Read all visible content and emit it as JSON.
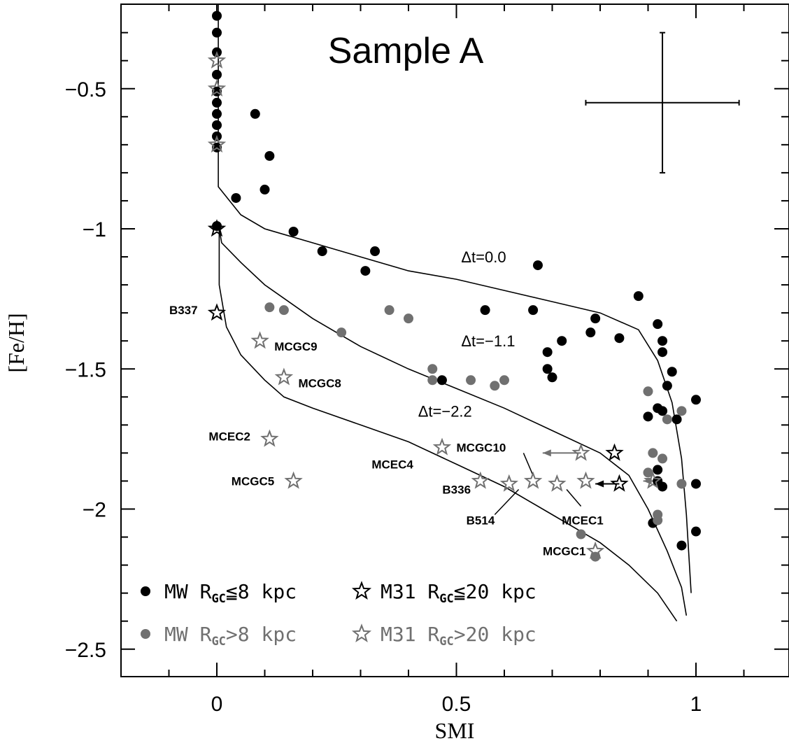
{
  "chart_data": {
    "type": "scatter",
    "title": "Sample A",
    "xlabel": "SMI",
    "ylabel": "[Fe/H]",
    "xlim": [
      -0.2,
      1.2
    ],
    "ylim": [
      -2.6,
      -0.2
    ],
    "grid": false,
    "x_ticks": [
      {
        "v": 0,
        "label": "0"
      },
      {
        "v": 0.5,
        "label": "0.5"
      },
      {
        "v": 1,
        "label": "1"
      }
    ],
    "y_ticks": [
      {
        "v": -0.5,
        "label": "−0.5"
      },
      {
        "v": -1,
        "label": "−1"
      },
      {
        "v": -1.5,
        "label": "−1.5"
      },
      {
        "v": -2,
        "label": "−2"
      },
      {
        "v": -2.5,
        "label": "−2.5"
      }
    ],
    "legend": {
      "placement": "bottom-left",
      "items": [
        {
          "marker": "dot",
          "color": "#000000",
          "text": "MW R",
          "sub": "GC",
          "rest": "≦8 kpc"
        },
        {
          "marker": "star",
          "color": "#000000",
          "text": "M31 R",
          "sub": "GC",
          "rest": "≦20 kpc"
        },
        {
          "marker": "dot",
          "color": "#707070",
          "text": "MW R",
          "sub": "GC",
          "rest": ">8 kpc"
        },
        {
          "marker": "star",
          "color": "#707070",
          "text": "M31 R",
          "sub": "GC",
          "rest": ">20 kpc"
        }
      ]
    },
    "error_bar": {
      "x": 0.93,
      "y": -0.55,
      "xerr": 0.16,
      "yerr": 0.25
    },
    "curves": [
      {
        "label": "Δt=0.0",
        "label_x": 0.51,
        "label_y": -1.12,
        "points": [
          [
            0.003,
            -0.2
          ],
          [
            0.003,
            -0.85
          ],
          [
            0.05,
            -0.95
          ],
          [
            0.1,
            -1.0
          ],
          [
            0.2,
            -1.05
          ],
          [
            0.3,
            -1.1
          ],
          [
            0.4,
            -1.15
          ],
          [
            0.5,
            -1.18
          ],
          [
            0.6,
            -1.22
          ],
          [
            0.7,
            -1.26
          ],
          [
            0.8,
            -1.3
          ],
          [
            0.88,
            -1.36
          ],
          [
            0.92,
            -1.47
          ],
          [
            0.95,
            -1.62
          ],
          [
            0.97,
            -1.82
          ],
          [
            0.98,
            -2.02
          ],
          [
            0.99,
            -2.3
          ]
        ]
      },
      {
        "label": "Δt=−1.1",
        "label_x": 0.51,
        "label_y": -1.42,
        "points": [
          [
            0.005,
            -1.0
          ],
          [
            0.01,
            -1.05
          ],
          [
            0.05,
            -1.12
          ],
          [
            0.1,
            -1.2
          ],
          [
            0.2,
            -1.32
          ],
          [
            0.3,
            -1.42
          ],
          [
            0.4,
            -1.5
          ],
          [
            0.5,
            -1.57
          ],
          [
            0.6,
            -1.64
          ],
          [
            0.7,
            -1.72
          ],
          [
            0.8,
            -1.8
          ],
          [
            0.86,
            -1.88
          ],
          [
            0.9,
            -2.0
          ],
          [
            0.94,
            -2.15
          ],
          [
            0.97,
            -2.28
          ],
          [
            0.98,
            -2.38
          ]
        ]
      },
      {
        "label": "Δt=−2.2",
        "label_x": 0.42,
        "label_y": -1.67,
        "points": [
          [
            0.005,
            -0.98
          ],
          [
            0.005,
            -1.2
          ],
          [
            0.02,
            -1.35
          ],
          [
            0.05,
            -1.45
          ],
          [
            0.1,
            -1.54
          ],
          [
            0.14,
            -1.6
          ],
          [
            0.2,
            -1.64
          ],
          [
            0.3,
            -1.7
          ],
          [
            0.4,
            -1.76
          ],
          [
            0.5,
            -1.84
          ],
          [
            0.6,
            -1.92
          ],
          [
            0.7,
            -2.02
          ],
          [
            0.8,
            -2.12
          ],
          [
            0.86,
            -2.2
          ],
          [
            0.92,
            -2.3
          ],
          [
            0.96,
            -2.4
          ]
        ]
      }
    ],
    "series": [
      {
        "name": "MW R",
        "sub": "GC",
        "rest": "≦8 kpc",
        "marker": "dot",
        "color": "#000000",
        "points": [
          [
            0,
            -0.24
          ],
          [
            0,
            -0.3
          ],
          [
            0,
            -0.37
          ],
          [
            0,
            -0.45
          ],
          [
            0,
            -0.51
          ],
          [
            0,
            -0.55
          ],
          [
            0,
            -0.59
          ],
          [
            0,
            -0.63
          ],
          [
            0,
            -0.67
          ],
          [
            0,
            -0.71
          ],
          [
            0,
            -0.99
          ],
          [
            0.08,
            -0.59
          ],
          [
            0.11,
            -0.74
          ],
          [
            0.1,
            -0.86
          ],
          [
            0.04,
            -0.89
          ],
          [
            0.16,
            -1.01
          ],
          [
            0.22,
            -1.08
          ],
          [
            0.31,
            -1.15
          ],
          [
            0.33,
            -1.08
          ],
          [
            0.47,
            -1.54
          ],
          [
            0.56,
            -1.29
          ],
          [
            0.66,
            -1.29
          ],
          [
            0.67,
            -1.13
          ],
          [
            0.69,
            -1.44
          ],
          [
            0.69,
            -1.5
          ],
          [
            0.7,
            -1.53
          ],
          [
            0.72,
            -1.4
          ],
          [
            0.78,
            -1.37
          ],
          [
            0.79,
            -1.32
          ],
          [
            0.84,
            -1.39
          ],
          [
            0.88,
            -1.24
          ],
          [
            0.9,
            -1.67
          ],
          [
            0.91,
            -2.05
          ],
          [
            0.92,
            -1.34
          ],
          [
            0.92,
            -1.64
          ],
          [
            0.92,
            -1.86
          ],
          [
            0.92,
            -1.9
          ],
          [
            0.93,
            -1.4
          ],
          [
            0.93,
            -1.44
          ],
          [
            0.93,
            -1.65
          ],
          [
            0.93,
            -1.92
          ],
          [
            0.94,
            -1.56
          ],
          [
            0.95,
            -1.51
          ],
          [
            0.96,
            -1.68
          ],
          [
            0.97,
            -2.13
          ],
          [
            1.0,
            -1.61
          ],
          [
            1.0,
            -1.91
          ],
          [
            1.0,
            -2.08
          ]
        ]
      },
      {
        "name": "MW R",
        "sub": "GC",
        "rest": ">8 kpc",
        "marker": "dot",
        "color": "#707070",
        "points": [
          [
            0.11,
            -1.28
          ],
          [
            0.14,
            -1.29
          ],
          [
            0.26,
            -1.37
          ],
          [
            0.36,
            -1.29
          ],
          [
            0.4,
            -1.32
          ],
          [
            0.45,
            -1.5
          ],
          [
            0.45,
            -1.54
          ],
          [
            0.53,
            -1.54
          ],
          [
            0.58,
            -1.56
          ],
          [
            0.6,
            -1.54
          ],
          [
            0.76,
            -2.09
          ],
          [
            0.79,
            -2.17
          ],
          [
            0.9,
            -1.58
          ],
          [
            0.9,
            -1.87
          ],
          [
            0.91,
            -1.8
          ],
          [
            0.92,
            -2.02
          ],
          [
            0.92,
            -2.04
          ],
          [
            0.93,
            -1.82
          ],
          [
            0.94,
            -1.68
          ],
          [
            0.97,
            -1.65
          ],
          [
            0.97,
            -1.91
          ]
        ]
      },
      {
        "name": "M31 R",
        "sub": "GC",
        "rest": "≦20 kpc",
        "marker": "star",
        "color": "#000000",
        "points": [
          [
            0,
            -1.0
          ],
          [
            0,
            -1.3
          ],
          [
            0.83,
            -1.8
          ],
          [
            0.84,
            -1.91
          ]
        ]
      },
      {
        "name": "M31 R",
        "sub": "GC",
        "rest": ">20 kpc",
        "marker": "star",
        "color": "#707070",
        "points": [
          [
            0,
            -0.4
          ],
          [
            0,
            -0.5
          ],
          [
            0,
            -0.7
          ],
          [
            0.09,
            -1.4
          ],
          [
            0.14,
            -1.53
          ],
          [
            0.11,
            -1.75
          ],
          [
            0.16,
            -1.9
          ],
          [
            0.47,
            -1.78
          ],
          [
            0.55,
            -1.9
          ],
          [
            0.61,
            -1.91
          ],
          [
            0.66,
            -1.9
          ],
          [
            0.71,
            -1.91
          ],
          [
            0.76,
            -1.8
          ],
          [
            0.77,
            -1.9
          ],
          [
            0.79,
            -2.15
          ],
          [
            0.91,
            -1.9
          ]
        ]
      }
    ],
    "arrows": [
      {
        "from": [
          0.84,
          -1.91
        ],
        "to": [
          0.79,
          -1.91
        ],
        "color": "#000000"
      },
      {
        "from": [
          0.76,
          -1.8
        ],
        "to": [
          0.68,
          -1.8
        ],
        "color": "#707070"
      },
      {
        "from": [
          0.91,
          -1.9
        ],
        "to": [
          0.89,
          -1.9
        ],
        "color": "#707070"
      }
    ],
    "annotations": [
      {
        "text": "B337",
        "x": -0.04,
        "y": -1.29,
        "anchor": "end",
        "line": null
      },
      {
        "text": "MCGC9",
        "x": 0.12,
        "y": -1.42,
        "anchor": "start",
        "line": null
      },
      {
        "text": "MCGC8",
        "x": 0.17,
        "y": -1.55,
        "anchor": "start",
        "line": null
      },
      {
        "text": "MCEC2",
        "x": 0.07,
        "y": -1.74,
        "anchor": "end",
        "line": null
      },
      {
        "text": "MCGC5",
        "x": 0.12,
        "y": -1.9,
        "anchor": "end",
        "line": null
      },
      {
        "text": "MCGC10",
        "x": 0.5,
        "y": -1.78,
        "anchor": "start",
        "line": [
          [
            0.64,
            -1.8
          ],
          [
            0.66,
            -1.88
          ]
        ]
      },
      {
        "text": "MCEC4",
        "x": 0.41,
        "y": -1.84,
        "anchor": "end",
        "line": null
      },
      {
        "text": "B336",
        "x": 0.53,
        "y": -1.93,
        "anchor": "end",
        "line": null
      },
      {
        "text": "B514",
        "x": 0.58,
        "y": -2.04,
        "anchor": "end",
        "line": [
          [
            0.58,
            -2.02
          ],
          [
            0.63,
            -1.93
          ]
        ]
      },
      {
        "text": "MCEC1",
        "x": 0.72,
        "y": -2.04,
        "anchor": "start",
        "line": [
          [
            0.73,
            -1.93
          ],
          [
            0.76,
            -1.99
          ]
        ]
      },
      {
        "text": "MCGC1",
        "x": 0.77,
        "y": -2.15,
        "anchor": "end",
        "line": null
      }
    ]
  }
}
